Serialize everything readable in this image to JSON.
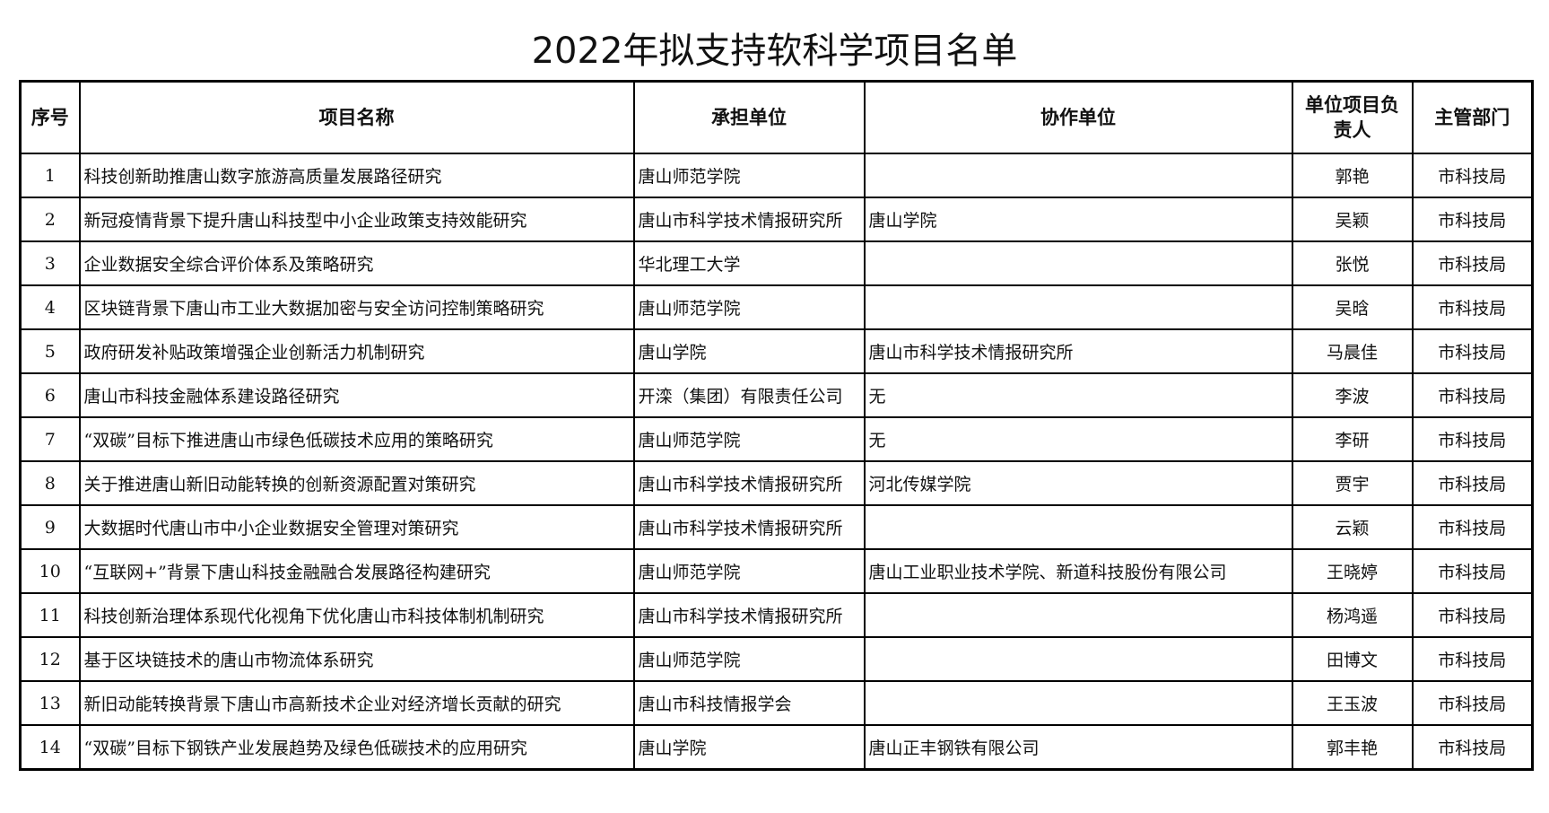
{
  "title": "2022年拟支持软科学项目名单",
  "headers": [
    "序号",
    "项目名称",
    "承担单位",
    "协作单位",
    "单位项目负责人",
    "主管部门"
  ],
  "rows": [
    [
      "1",
      "科技创新助推唐山数字旅游高质量发展路径研究",
      "唐山师范学院",
      "",
      "郭艳",
      "市科技局"
    ],
    [
      "2",
      "新冠疫情背景下提升唐山科技型中小企业政策支持效能研究",
      "唐山市科学技术情报研究所",
      "唐山学院",
      "吴颖",
      "市科技局"
    ],
    [
      "3",
      "企业数据安全综合评价体系及策略研究",
      "华北理工大学",
      "",
      "张悦",
      "市科技局"
    ],
    [
      "4",
      "区块链背景下唐山市工业大数据加密与安全访问控制策略研究",
      "唐山师范学院",
      "",
      "吴晗",
      "市科技局"
    ],
    [
      "5",
      "政府研发补贴政策增强企业创新活力机制研究",
      "唐山学院",
      "唐山市科学技术情报研究所",
      "马晨佳",
      "市科技局"
    ],
    [
      "6",
      "唐山市科技金融体系建设路径研究",
      "开滦（集团）有限责任公司",
      "无",
      "李波",
      "市科技局"
    ],
    [
      "7",
      "“双碳”目标下推进唐山市绿色低碳技术应用的策略研究",
      "唐山师范学院",
      "无",
      "李研",
      "市科技局"
    ],
    [
      "8",
      "关于推进唐山新旧动能转换的创新资源配置对策研究",
      "唐山市科学技术情报研究所",
      "河北传媒学院",
      "贾宇",
      "市科技局"
    ],
    [
      "9",
      "大数据时代唐山市中小企业数据安全管理对策研究",
      "唐山市科学技术情报研究所",
      "",
      "云颖",
      "市科技局"
    ],
    [
      "10",
      "“互联网+”背景下唐山科技金融融合发展路径构建研究",
      "唐山师范学院",
      "唐山工业职业技术学院、新道科技股份有限公司",
      "王晓婷",
      "市科技局"
    ],
    [
      "11",
      "科技创新治理体系现代化视角下优化唐山市科技体制机制研究",
      "唐山市科学技术情报研究所",
      "",
      "杨鸿遥",
      "市科技局"
    ],
    [
      "12",
      "基于区块链技术的唐山市物流体系研究",
      "唐山师范学院",
      "",
      "田博文",
      "市科技局"
    ],
    [
      "13",
      "新旧动能转换背景下唐山市高新技术企业对经济增长贡献的研究",
      "唐山市科技情报学会",
      "",
      "王玉波",
      "市科技局"
    ],
    [
      "14",
      "“双碳”目标下钢铁产业发展趋势及绿色低碳技术的应用研究",
      "唐山学院",
      "唐山正丰钢铁有限公司",
      "郭丰艳",
      "市科技局"
    ]
  ]
}
